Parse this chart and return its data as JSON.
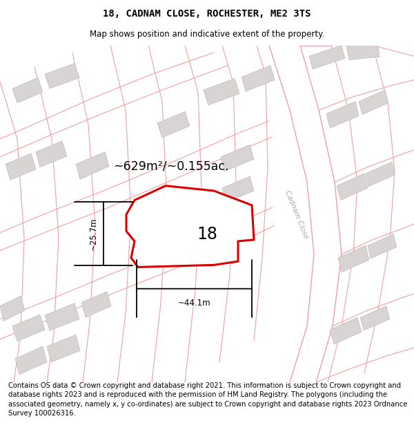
{
  "title": "18, CADNAM CLOSE, ROCHESTER, ME2 3TS",
  "subtitle": "Map shows position and indicative extent of the property.",
  "footer": "Contains OS data © Crown copyright and database right 2021. This information is subject to Crown copyright and database rights 2023 and is reproduced with the permission of HM Land Registry. The polygons (including the associated geometry, namely x, y co-ordinates) are subject to Crown copyright and database rights 2023 Ordnance Survey 100026316.",
  "title_fontsize": 10,
  "subtitle_fontsize": 8.5,
  "footer_fontsize": 7.2,
  "area_label": "~629m²/~0.155ac.",
  "number_label": "18",
  "dim_h": "~25.7m",
  "dim_w": "~44.1m",
  "highlight_color": "#dd0000",
  "road_line_color": "#f0a0a0",
  "building_color": "#d8d4d4",
  "building_edge": "#c0bcbc",
  "street_label": "Cadnam Close",
  "map_bg": "#faf8f8"
}
